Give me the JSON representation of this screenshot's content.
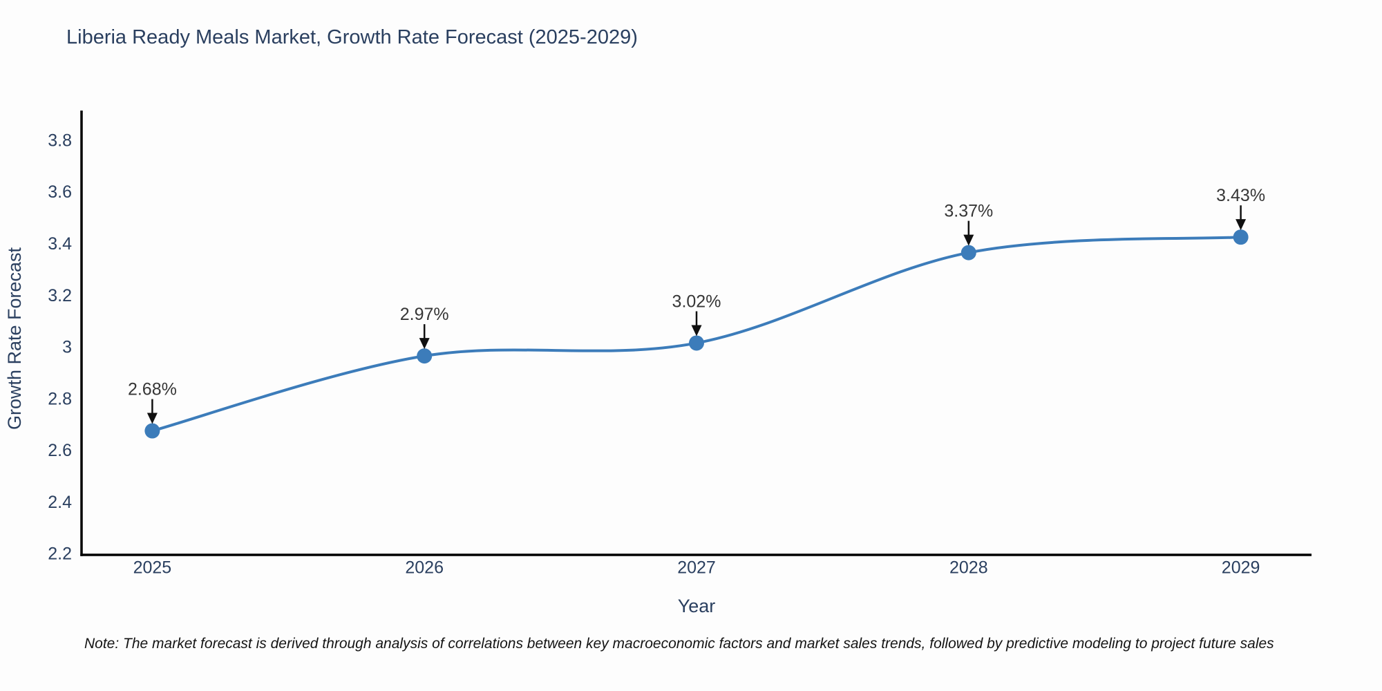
{
  "title": "Liberia Ready Meals Market, Growth Rate Forecast (2025-2029)",
  "note": "Note: The market forecast is derived through analysis of correlations between key macroeconomic factors and market sales trends, followed by predictive modeling to project future sales",
  "chart_data": {
    "type": "line",
    "title": "Liberia Ready Meals Market, Growth Rate Forecast (2025-2029)",
    "xlabel": "Year",
    "ylabel": "Growth Rate Forecast",
    "x": [
      2025,
      2026,
      2027,
      2028,
      2029
    ],
    "y": [
      2.68,
      2.97,
      3.02,
      3.37,
      3.43
    ],
    "point_labels": [
      "2.68%",
      "2.97%",
      "3.02%",
      "3.37%",
      "3.43%"
    ],
    "xticks": [
      "2025",
      "2026",
      "2027",
      "2028",
      "2029"
    ],
    "yticks": [
      2.2,
      2.4,
      2.6,
      2.8,
      3,
      3.2,
      3.4,
      3.6,
      3.8
    ],
    "ytick_labels": [
      "2.2",
      "2.4",
      "2.6",
      "2.8",
      "3",
      "3.2",
      "3.4",
      "3.6",
      "3.8"
    ],
    "xlim": [
      2024.74,
      2029.26
    ],
    "ylim": [
      2.2,
      3.92
    ],
    "grid": false,
    "legend": false,
    "line_shape": "spline",
    "colors": {
      "line": "#3c7cba",
      "marker": "#3c7cba",
      "axis": "#000000",
      "tick_text": "#2a3f5f",
      "title_text": "#2a3f5f",
      "annotation_text": "#363636",
      "arrow": "#101010",
      "background": "#fdfdfd"
    }
  }
}
